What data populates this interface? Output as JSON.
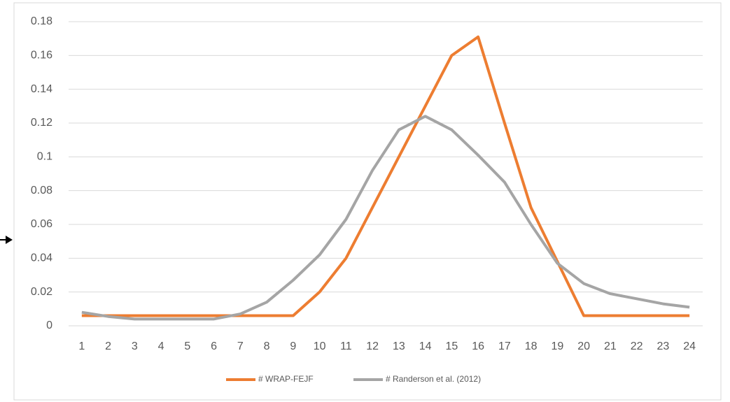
{
  "chart_data": {
    "type": "line",
    "categories": [
      "1",
      "2",
      "3",
      "4",
      "5",
      "6",
      "7",
      "8",
      "9",
      "10",
      "11",
      "12",
      "13",
      "14",
      "15",
      "16",
      "17",
      "18",
      "19",
      "20",
      "21",
      "22",
      "23",
      "24"
    ],
    "series": [
      {
        "name": "# WRAP-FEJF",
        "color": "#ed7d31",
        "values": [
          0.006,
          0.006,
          0.006,
          0.006,
          0.006,
          0.006,
          0.006,
          0.006,
          0.006,
          0.02,
          0.04,
          0.07,
          0.1,
          0.13,
          0.16,
          0.171,
          0.12,
          0.07,
          0.038,
          0.006,
          0.006,
          0.006,
          0.006,
          0.006
        ]
      },
      {
        "name": "# Randerson et al. (2012)",
        "color": "#a5a5a5",
        "values": [
          0.008,
          0.0055,
          0.004,
          0.004,
          0.004,
          0.004,
          0.007,
          0.014,
          0.027,
          0.042,
          0.063,
          0.092,
          0.116,
          0.124,
          0.116,
          0.101,
          0.085,
          0.06,
          0.037,
          0.025,
          0.019,
          0.016,
          0.013,
          0.011
        ]
      }
    ],
    "ylim": [
      0,
      0.18
    ],
    "yticks": [
      0,
      0.02,
      0.04,
      0.06,
      0.08,
      0.1,
      0.12,
      0.14,
      0.16,
      0.18
    ],
    "grid": true,
    "legend": "bottom"
  }
}
